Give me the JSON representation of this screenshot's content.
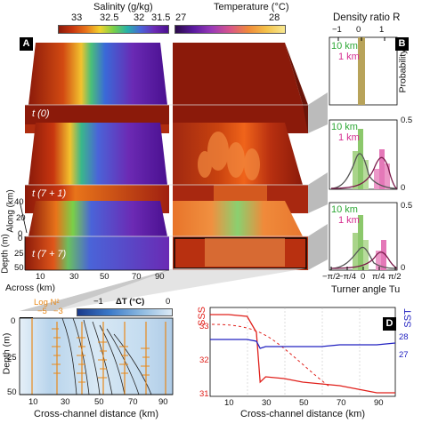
{
  "header": {
    "salinity_title": "Salinity (g/kg)",
    "salinity_ticks": [
      "33",
      "32.5",
      "32",
      "31.5"
    ],
    "temperature_title": "Temperature (°C)",
    "temperature_ticks": [
      "27",
      "28"
    ],
    "density_title": "Density ratio R",
    "density_ticks": [
      "−1",
      "0",
      "1"
    ]
  },
  "panel_labels": {
    "a": "A",
    "b": "B",
    "c": "C",
    "d": "D"
  },
  "times": [
    "t (0)",
    "t (7 + 1)",
    "t (7 + 7)"
  ],
  "axes3d": {
    "along_label": "Along (km)",
    "along_ticks": [
      "40",
      "20",
      "0"
    ],
    "depth_label": "Depth (m)",
    "depth_ticks": [
      "0",
      "25",
      "50"
    ],
    "across_label": "Across (km)",
    "across_ticks": [
      "10",
      "30",
      "50",
      "70",
      "90"
    ]
  },
  "panel_b": {
    "legend_10": "10 km",
    "legend_1": "1 km",
    "ylabel": "Probability",
    "ytick_top": "0.5",
    "ytick_zero": "0",
    "xlabel": "Turner angle Tu",
    "xticks": [
      "−π/2",
      "−π/4",
      "0",
      "π/4",
      "π/2"
    ],
    "colors": {
      "km10": "#2ea836",
      "km1": "#d52c8f"
    }
  },
  "panel_c": {
    "log_label": "Log N²",
    "log_ticks": [
      "−5",
      "−3"
    ],
    "dt_label": "ΔT (°C)",
    "dt_ticks": [
      "−1",
      "0"
    ],
    "ylabel": "Depth (m)",
    "yticks": [
      "0",
      "25",
      "50"
    ],
    "xlabel": "Cross-channel distance (km)",
    "xticks": [
      "10",
      "30",
      "50",
      "70",
      "90"
    ]
  },
  "panel_d": {
    "sss_label": "SSS",
    "sst_label": "SST",
    "sss_ticks": [
      "33",
      "32",
      "31"
    ],
    "sst_ticks": [
      "28",
      "27"
    ],
    "xlabel": "Cross-channel distance (km)",
    "xticks": [
      "10",
      "30",
      "50",
      "70",
      "90"
    ],
    "colors": {
      "sss": "#e0201b",
      "sst": "#2020c0"
    }
  },
  "chart_data": [
    {
      "type": "bar",
      "panel": "B, t(0)",
      "categories": [
        "0"
      ],
      "series": [
        {
          "name": "10 km",
          "values": [
            1.0
          ]
        }
      ],
      "xlabel": "Density ratio R",
      "ylabel": "Probability"
    },
    {
      "type": "bar",
      "panel": "B, t(7+1)",
      "categories": [
        "−π/2",
        "−π/4",
        "0",
        "π/4",
        "π/2"
      ],
      "series": [
        {
          "name": "10 km",
          "values": [
            0.0,
            0.05,
            0.45,
            0.05,
            0.0
          ]
        },
        {
          "name": "1 km",
          "values": [
            0.0,
            0.0,
            0.08,
            0.28,
            0.02
          ]
        }
      ],
      "ylim": [
        0,
        0.5
      ],
      "xlabel": "Turner angle Tu",
      "ylabel": "Probability"
    },
    {
      "type": "bar",
      "panel": "B, t(7+7)",
      "categories": [
        "−π/2",
        "−π/4",
        "0",
        "π/4",
        "π/2"
      ],
      "series": [
        {
          "name": "10 km",
          "values": [
            0.0,
            0.03,
            0.4,
            0.08,
            0.0
          ]
        },
        {
          "name": "1 km",
          "values": [
            0.0,
            0.0,
            0.05,
            0.2,
            0.05
          ]
        }
      ],
      "ylim": [
        0,
        0.5
      ],
      "xlabel": "Turner angle Tu",
      "ylabel": "Probability"
    },
    {
      "type": "line",
      "panel": "D",
      "x": [
        0,
        10,
        20,
        25,
        27,
        30,
        40,
        50,
        60,
        70,
        80,
        90,
        100
      ],
      "series": [
        {
          "name": "SSS",
          "values": [
            33.3,
            33.3,
            33.25,
            32.8,
            31.4,
            31.55,
            31.5,
            31.4,
            31.35,
            31.3,
            31.2,
            31.1,
            31.1
          ]
        },
        {
          "name": "SST",
          "values": [
            28.1,
            28.1,
            28.1,
            28.05,
            27.85,
            27.9,
            27.9,
            27.9,
            27.9,
            27.95,
            27.95,
            27.95,
            28.0
          ]
        }
      ],
      "xlabel": "Cross-channel distance (km)"
    }
  ]
}
